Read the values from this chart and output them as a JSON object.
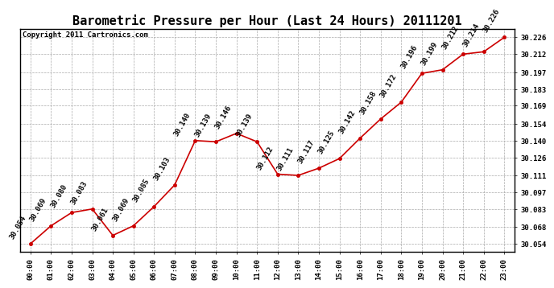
{
  "title": "Barometric Pressure per Hour (Last 24 Hours) 20111201",
  "copyright": "Copyright 2011 Cartronics.com",
  "hours": [
    "00:00",
    "01:00",
    "02:00",
    "03:00",
    "04:00",
    "05:00",
    "06:00",
    "07:00",
    "08:00",
    "09:00",
    "10:00",
    "11:00",
    "12:00",
    "13:00",
    "14:00",
    "15:00",
    "16:00",
    "17:00",
    "18:00",
    "19:00",
    "20:00",
    "21:00",
    "22:00",
    "23:00"
  ],
  "values": [
    30.054,
    30.069,
    30.08,
    30.083,
    30.061,
    30.069,
    30.085,
    30.103,
    30.14,
    30.139,
    30.146,
    30.139,
    30.112,
    30.111,
    30.117,
    30.125,
    30.142,
    30.158,
    30.172,
    30.196,
    30.199,
    30.212,
    30.214,
    30.226
  ],
  "labels": [
    "30.054",
    "30.069",
    "30.080",
    "30.083",
    "30.061",
    "30.069",
    "30.085",
    "30.103",
    "30.140",
    "30.139",
    "30.146",
    "30.139",
    "30.112",
    "30.111",
    "30.117",
    "30.125",
    "30.142",
    "30.158",
    "30.172",
    "30.196",
    "30.199",
    "30.212",
    "30.214",
    "30.226"
  ],
  "line_color": "#cc0000",
  "marker_color": "#cc0000",
  "background_color": "#ffffff",
  "grid_color": "#aaaaaa",
  "ytick_labels": [
    "30.054",
    "30.068",
    "30.083",
    "30.097",
    "30.111",
    "30.126",
    "30.140",
    "30.154",
    "30.169",
    "30.183",
    "30.197",
    "30.212",
    "30.226"
  ],
  "ytick_values": [
    30.054,
    30.068,
    30.083,
    30.097,
    30.111,
    30.126,
    30.14,
    30.154,
    30.169,
    30.183,
    30.197,
    30.212,
    30.226
  ],
  "ylim": [
    30.047,
    30.233
  ],
  "title_fontsize": 11,
  "label_fontsize": 6.5,
  "annotation_fontsize": 6.5,
  "copyright_fontsize": 6.5
}
